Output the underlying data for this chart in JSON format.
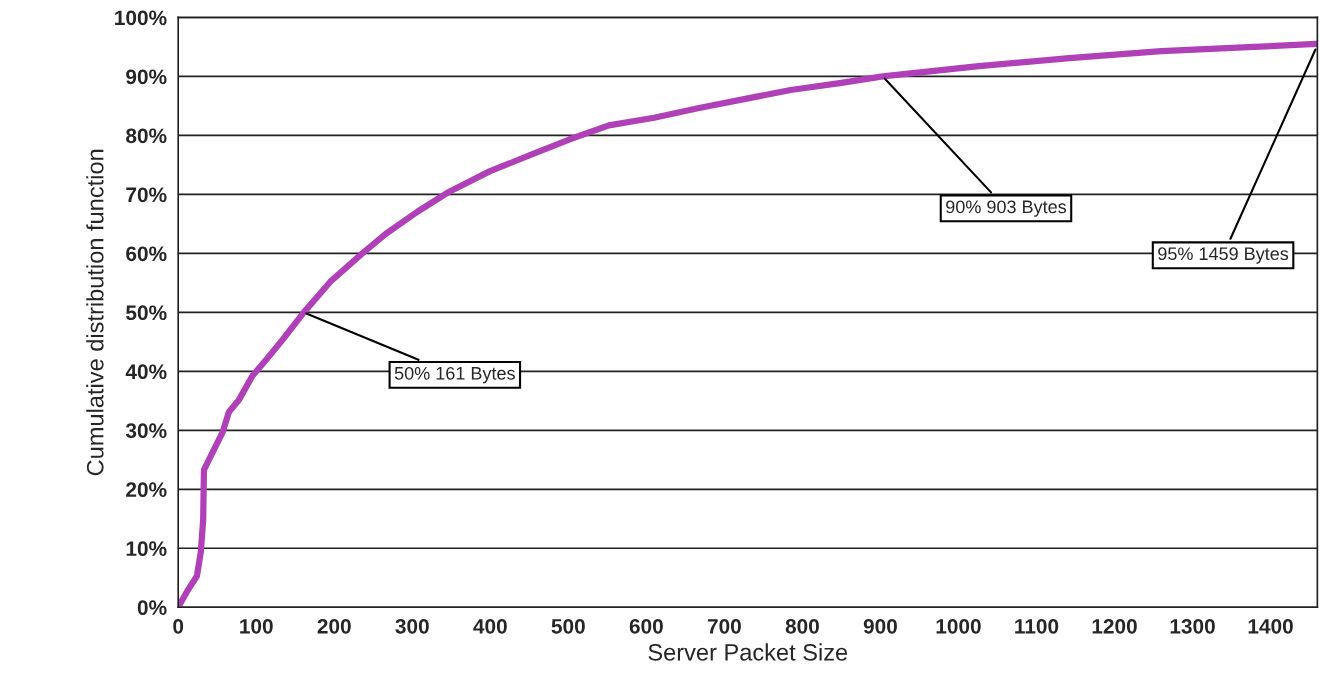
{
  "chart_data": {
    "type": "line",
    "xlabel": "Server Packet Size",
    "ylabel": "Cumulative distribution function",
    "x": [
      0,
      11,
      24,
      29,
      32,
      33,
      42,
      57,
      65,
      78,
      95,
      113,
      134,
      161,
      195,
      236,
      266,
      307,
      348,
      399,
      450,
      501,
      552,
      610,
      666,
      735,
      785,
      850,
      903,
      1023,
      1142,
      1260,
      1379,
      1459
    ],
    "series": [
      {
        "color": "#b040b8",
        "values": [
          0,
          2.6,
          5.3,
          9.4,
          14.8,
          23.3,
          25.7,
          29.7,
          33.1,
          35.2,
          39.2,
          42,
          45.4,
          50,
          55.2,
          60,
          63.3,
          67.1,
          70.5,
          73.9,
          76.6,
          79.3,
          81.7,
          83,
          84.6,
          86.4,
          87.7,
          88.9,
          90,
          91.7,
          93.1,
          94.3,
          95,
          95.5
        ]
      }
    ],
    "xlim": [
      0,
      1460
    ],
    "xticks": [
      0,
      100,
      200,
      300,
      400,
      500,
      600,
      700,
      800,
      900,
      1000,
      1100,
      1200,
      1300,
      1400
    ],
    "ylim": [
      0,
      100
    ],
    "yticks": [
      {
        "value": 0,
        "label": "0%"
      },
      {
        "value": 10,
        "label": "10%"
      },
      {
        "value": 20,
        "label": "20%"
      },
      {
        "value": 30,
        "label": "30%"
      },
      {
        "value": 40,
        "label": "40%"
      },
      {
        "value": 50,
        "label": "50%"
      },
      {
        "value": 60,
        "label": "60%"
      },
      {
        "value": 70,
        "label": "70%"
      },
      {
        "value": 80,
        "label": "80%"
      },
      {
        "value": 90,
        "label": "90%"
      },
      {
        "value": 100,
        "label": "100%"
      }
    ],
    "grid": "y",
    "marker": "none",
    "line_style": "solid",
    "annotations": [
      {
        "text": "50% 161 Bytes",
        "x": 161,
        "y": 50
      },
      {
        "text": "90% 903 Bytes",
        "x": 903,
        "y": 90
      },
      {
        "text": "95% 1459 Bytes",
        "x": 1459,
        "y": 95
      }
    ]
  }
}
